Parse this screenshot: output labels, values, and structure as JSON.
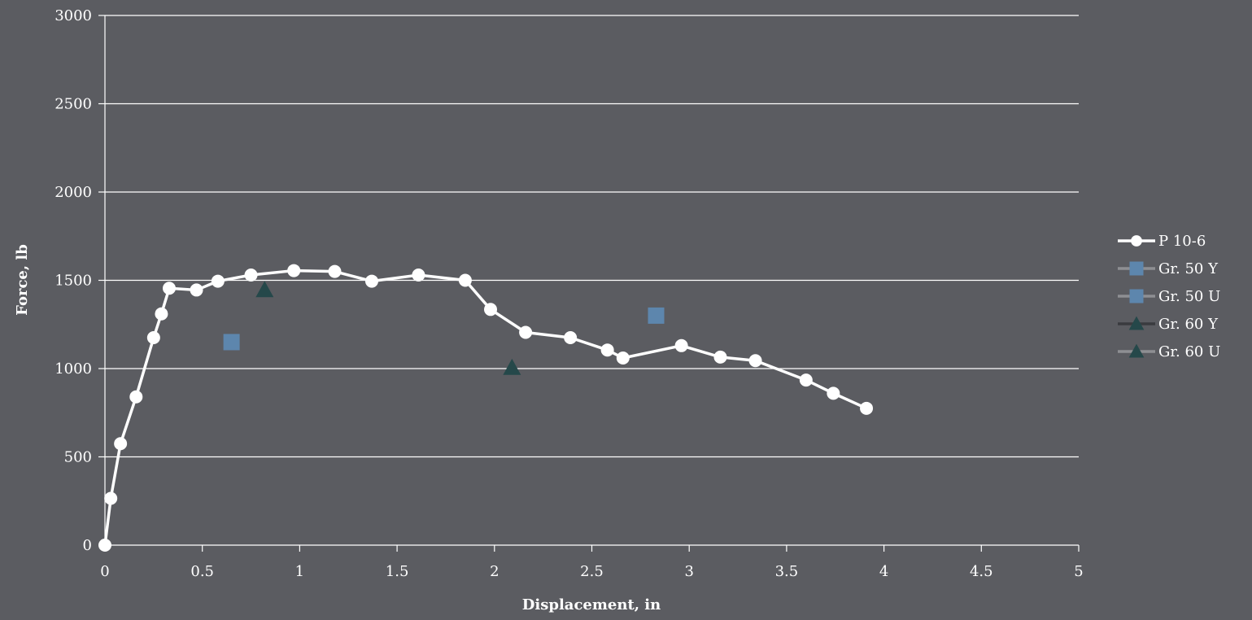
{
  "chart_data": {
    "type": "scatter",
    "xlabel": "Displacement, in",
    "ylabel": "Force, lb",
    "xlim": [
      0,
      5
    ],
    "ylim": [
      0,
      3000
    ],
    "x_ticks": [
      "0",
      "0.5",
      "1",
      "1.5",
      "2",
      "2.5",
      "3",
      "3.5",
      "4",
      "4.5",
      "5"
    ],
    "y_ticks": [
      "0",
      "500",
      "1000",
      "1500",
      "2000",
      "2500",
      "3000"
    ],
    "grid": "horizontal",
    "legend_position": "right",
    "series": [
      {
        "name": "P 10-6",
        "marker": "circle",
        "line": true,
        "color": "#ffffff",
        "x": [
          0,
          0.03,
          0.08,
          0.16,
          0.25,
          0.29,
          0.33,
          0.47,
          0.58,
          0.75,
          0.97,
          1.18,
          1.37,
          1.61,
          1.85,
          1.98,
          2.16,
          2.39,
          2.58,
          2.66,
          2.96,
          3.16,
          3.34,
          3.6,
          3.74,
          3.91
        ],
        "y": [
          0,
          265,
          575,
          840,
          1175,
          1310,
          1455,
          1445,
          1495,
          1530,
          1555,
          1550,
          1495,
          1530,
          1500,
          1335,
          1205,
          1175,
          1105,
          1060,
          1130,
          1065,
          1045,
          935,
          860,
          775
        ]
      },
      {
        "name": "Gr. 50 Y",
        "marker": "square",
        "line": false,
        "color": "#5d86ad",
        "legend_line_color": "#8e8f93",
        "x": [
          0.65
        ],
        "y": [
          1150
        ]
      },
      {
        "name": "Gr. 50 U",
        "marker": "square",
        "line": false,
        "color": "#5d86ad",
        "legend_line_color": "#8e8f93",
        "x": [
          2.83
        ],
        "y": [
          1300
        ]
      },
      {
        "name": "Gr. 60 Y",
        "marker": "triangle",
        "line": false,
        "color": "#25484a",
        "legend_line_color": "#3a3b3f",
        "x": [
          0.82
        ],
        "y": [
          1445
        ]
      },
      {
        "name": "Gr. 60 U",
        "marker": "triangle",
        "line": false,
        "color": "#25484a",
        "legend_line_color": "#8e8f93",
        "x": [
          2.09
        ],
        "y": [
          1005
        ]
      }
    ]
  }
}
